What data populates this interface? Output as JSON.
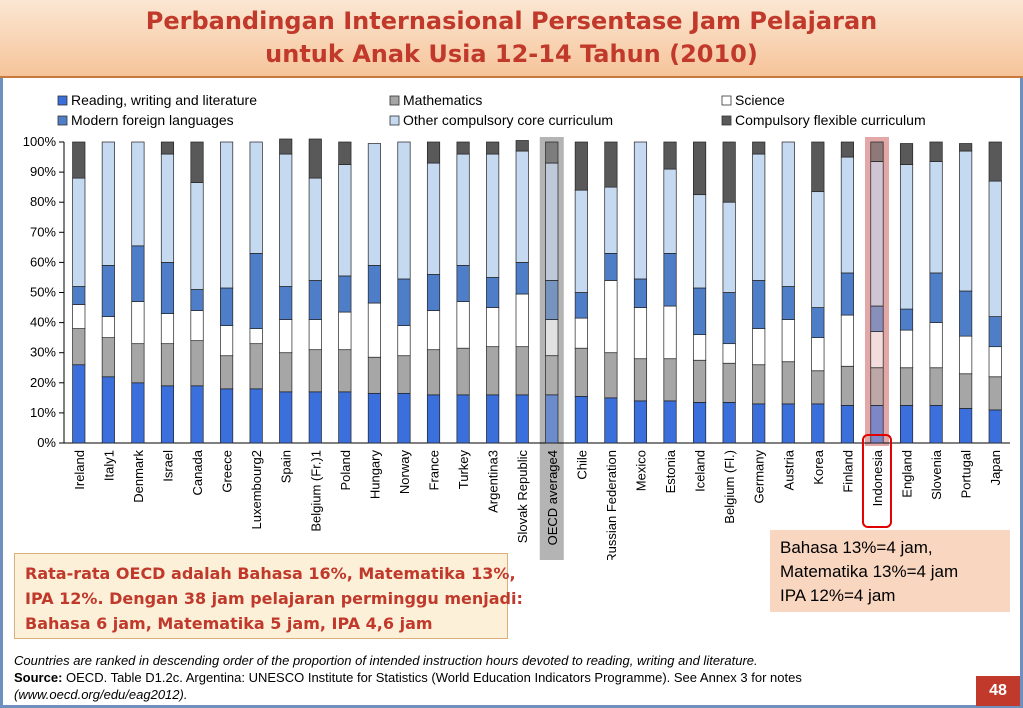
{
  "title": {
    "line1": "Perbandingan Internasional Persentase Jam Pelajaran",
    "line2": "untuk Anak Usia 12-14 Tahun (2010)"
  },
  "colors": {
    "title": "#c0392b",
    "highlight_oecd": "#b4b4b4",
    "highlight_indonesia": "#e2a8a8",
    "indonesia_outline": "#e00000",
    "page_number_bg": "#c0392b"
  },
  "chart_data": {
    "type": "bar",
    "stacked": true,
    "percent": true,
    "ylim": [
      0,
      100
    ],
    "yticks": [
      "0%",
      "10%",
      "20%",
      "30%",
      "40%",
      "50%",
      "60%",
      "70%",
      "80%",
      "90%",
      "100%"
    ],
    "grid": false,
    "legend_position": "top",
    "categories": [
      "Ireland",
      "Italy1",
      "Denmark",
      "Israel",
      "Canada",
      "Greece",
      "Luxembourg2",
      "Spain",
      "Belgium (Fr.)1",
      "Poland",
      "Hungary",
      "Norway",
      "France",
      "Turkey",
      "Argentina3",
      "Slovak Republic",
      "OECD average4",
      "Chile",
      "Russian Federation",
      "Mexico",
      "Estonia",
      "Iceland",
      "Belgium (Fl.)",
      "Germany",
      "Austria",
      "Korea",
      "Finland",
      "Indonesia",
      "England",
      "Slovenia",
      "Portugal",
      "Japan"
    ],
    "highlighted": [
      "OECD average4",
      "Indonesia"
    ],
    "series": [
      {
        "name": "Reading, writing and literature",
        "color": "#3a6fdc",
        "values": [
          26,
          22,
          20,
          19,
          19,
          18,
          18,
          17,
          17,
          17,
          16.5,
          16.5,
          16,
          16,
          16,
          16,
          16,
          15.5,
          15,
          14,
          14,
          13.5,
          13.5,
          13,
          13,
          13,
          12.5,
          12.5,
          12.5,
          12.5,
          11.5,
          11
        ]
      },
      {
        "name": "Mathematics",
        "color": "#a6a6a6",
        "values": [
          12,
          13,
          13,
          14,
          15,
          11,
          15,
          13,
          14,
          14,
          12,
          12.5,
          15,
          15.5,
          16,
          16,
          13,
          16,
          15,
          14,
          14,
          14,
          13,
          13,
          14,
          11,
          13,
          12.5,
          12.5,
          12.5,
          11.5,
          11
        ]
      },
      {
        "name": "Science",
        "color": "#ffffff",
        "values": [
          8,
          7,
          14,
          10,
          10,
          10,
          5,
          11,
          10,
          12.5,
          18,
          10,
          13,
          15.5,
          13,
          17.5,
          12,
          10,
          24,
          17,
          17.5,
          8.5,
          6.5,
          12,
          14,
          11,
          17,
          12,
          12.5,
          15,
          12.5,
          10
        ]
      },
      {
        "name": "Modern foreign languages",
        "color": "#4f7ec8",
        "values": [
          6,
          17,
          18.5,
          17,
          7,
          12.5,
          25,
          11,
          13,
          12,
          12.5,
          15.5,
          12,
          12,
          10,
          10.5,
          13,
          8.5,
          9,
          9.5,
          17.5,
          15.5,
          17,
          16,
          11,
          10,
          14,
          8.5,
          7,
          16.5,
          15,
          10
        ]
      },
      {
        "name": "Other compulsory core curriculum",
        "color": "#c5d9f1",
        "values": [
          36,
          41,
          34.5,
          36,
          35.5,
          48.5,
          37,
          44,
          34,
          37,
          40.5,
          45.5,
          37,
          37,
          41,
          37,
          39,
          34,
          22,
          45.5,
          28,
          31,
          30,
          42,
          48,
          38.5,
          38.5,
          48,
          48,
          37,
          46.5,
          45
        ]
      },
      {
        "name": "Compulsory flexible curriculum",
        "color": "#595959",
        "values": [
          12,
          0,
          0,
          4,
          13.5,
          0,
          0,
          5,
          13,
          7.5,
          0,
          0,
          7,
          4,
          4,
          3.5,
          7,
          16,
          15,
          0,
          9,
          17.5,
          20,
          4,
          0,
          16.5,
          5,
          6.5,
          7,
          6.5,
          2.5,
          13
        ]
      }
    ]
  },
  "note_box": {
    "line1": "Rata-rata OECD adalah Bahasa 16%, Matematika 13%,",
    "line2": "IPA 12%. Dengan 38 jam pelajaran perminggu menjadi:",
    "line3": "Bahasa 6 jam, Matematika 5 jam, IPA 4,6 jam"
  },
  "indonesia_box": {
    "line1": "Bahasa 13%=4 jam,",
    "line2": "Matematika 13%=4 jam",
    "line3": "IPA 12%=4 jam"
  },
  "footnote": {
    "line1": "Countries are ranked in descending order of the proportion of intended instruction hours devoted to reading, writing and literature.",
    "source_label": "Source:",
    "source_text": " OECD. Table D1.2c. Argentina: UNESCO Institute for Statistics (World Education Indicators Programme). See Annex 3 for notes",
    "line3": "(www.oecd.org/edu/eag2012)."
  },
  "page_number": "48"
}
